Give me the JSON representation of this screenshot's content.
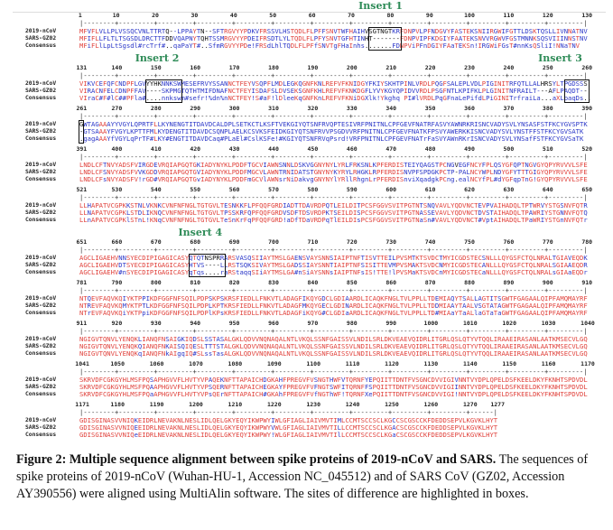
{
  "labels": {
    "ncov": "2019-nCoV",
    "sars": "SARS-GZ02",
    "consensus": "Consensus"
  },
  "alignment_length": 1277,
  "block_width": 130,
  "sequences": {
    "ncov": [
      "MFVFLVLLPLVSSQCVNLTTRTQ--LPPAYTN--SFTRGVYYPDKVFRSSVLHSTQDLFLPFFSNVTWFHAIHVSGTNGTKRFDNPVLPFNDGVYFASTEKSNIIRGWIFGTTLDSKTQSLLIVNNATNV",
      "VIKVCEFQFCNDPFLGVYYHKNNKSWMESEFRVYSSANNCTFEYVSQPFLMDLEGKQGNFKNLREFVFKNIDGYFKIYSKHTPINLVRDLPQGFSALEPLVDLPIGINITRFQTLLALHRSYLTPGDSSS",
      "GWTAGAAAYYVGYLQPRTFLLKYNENGTITDAVDCALDPLSETKCTLKSFTVEKGIYQTSNFRVQPTESIVRFPNITNLCPFGEVFNATRFASVYAWNRKRISNCVADYSVLYNSASFSTFKCYGVSPTK",
      "LNDLCFTNVYADSFVIRGDEVRQIAPGQTGKIADYNYKLPDDFTGCVIAWNSNNLDSKVGGNYNYLYRLFRKSNLKPFERDISTEIYQAGSTPCNGVEGFNCYFPLQSYGFQPTNGVGYQPYRVVVLSFE",
      "LLHAPATVCGPKKSTNLVKNKCVNFNFNGLTGTGVLTESNKKFLPFQQFGRDIADTTDAVRDPQTLEILDITPCSFGGVSVITPGTNTSNQVAVLYQDVNCTEVPVAIHADQLTPTWRVYSTGSNVFQTR",
      "AGCLIGAEHVNNSYECDIPIGAGICASYQTQTNSPRRARSVASQSIIAYTMSLGAENSVAYSNNSIAIPTNFTISVTTEILPVSMTKTSVDCTMYICGDSTECSNLLLQYGSFCTQLNRALTGIAVEQDK",
      "NTQEVFAQVKQIYKTPPIKDFGGFNFSQILPDPSKPSKRSFIEDLLFNKVTLADAGFIKQYGDCLGDIAARDLICAQKFNGLTVLPPLLTDEMIAQYTSALLAGTITSGWTFGAGAALQIPFAMQMAYRF",
      "NGIGVTQNVLYENQKLIANQFNSAIGKIQDSLSSTASALGKLQDVVNQNAQALNTLVKQLSSNFGAISSVLNDILSRLDKVEAEVQIDRLITGRLQSLQTYVTQQLIRAAEIRASANLAATKMSECVLGQ",
      "SKRVDFCGKGYHLMSFPQSAPHGVVFLHVTYVPAQEKNFTTAPAICHDGKAHFPREGVFVSNGTHWFVTQRNFYEPQIITTDNTFVSGNCDVVIGIVNNTVYDPLQPELDSFKEELDKYFKNHTSPDVDL",
      "GDISGINASVVNIQKEIDRLNEVAKNLNESLIDLQELGKYEQYIKWPWYIWLGFIAGLIAIVMVTIMLCCMTSCCSCLKGCCSCGSCCKFDEDDSEPVLKGVKLHYT"
    ],
    "sars": [
      "MFIFLLFLTLTSGSDLDRCTTFDDVQAPNYTQHTSSMRGVYYPDEIFRSDTLYLTQDLFLPFYSNVTGFHTINHT-------FDNPVIPFKDGIYFAATEKSNVVRGWVFGSTMNNKSQSVIIINNSTNV",
      "VIRACNFELCDNPFFAV----SKPMGTQTHTMIFDNAFNCTFEYISDAFSLDVSEKSGNFKHLREFVFKNKDGFLYVYKGYQPIDVVRDLPSGFNTLKPIFKLPLGINITNFRAILT---AFLPAQDT--",
      "-GTSAAAYFVGYLKPTTFMLKYDENGTITDAVDCSQNPLAELKCSVKSFEIDKGIYQTSNFRVVPSGDVVRFPNITNLCPFGEVFNATKFPSVYAWERKKISNCVADYSVLYNSTFFSTFKCYGVSATK",
      "LNDLCFSNVYADSFVVKGDDVRQIAPGQTGVIADYNYKLPDDFMGCVLAWNTRNIDATSTGNYNYKYRYLRHGKLRPFERDISNVPFSPDGKPCTP-PALNCYWPLNDYGFYTTTGIGYQPYRVVVLSFE",
      "LLNAPATVCGPKLSTDLIKNQCVNFNFNGLTGTGVLTPSSKRFQPFQQFGRDVSDFTDSVRDPKTSEILDISPCSFGGVSVITPGTNASSEVAVLYQDVNCTDVSTAIHADQLTPAWRIYSTGNNVFQTQ",
      "AGCLIGAEHVDTSYECDIPIGAGICASYHTVS----LLRSTSQKSIVAYTMSLGADSSIAYSNNTIAIPTNFSISITTEVMPVSMAKTSVDCNMYICGDSTECANLLLQYGSFCTQLNRALSGIAAEQDR",
      "NTREVFAQVKQMYKTPTLKDFGGFNFSQILPDPLKPTKRSFIEDLLFNKVTLADAGFMKQYGECLGDINARDLICAQKFNGLTVLPPLLTDDMIAAYTAALVSGTATAGWTFGAGAALQIPFAMQMAYRF",
      "NGIGVTQNVLYENQKQIANQFNKAISQIQESLTTTSTALGKLQDVVNQNAQALNTLVKQLSSNFGAISSVLNDILSRLDKVEAEVQIDRLITGRLQSLQTYVTQQLIRAAEIRASANLAATKMSECVLGQ",
      "SKRVDFCGKGYHLMSFPQAAPHGVVFLHVTYVPSQERNFTTAPAICHEGKAYFPREGVFVFNGTSWFITQRNFFSPQIITTDNTFVSGNCDVVIGIINNTVYDPLQPELDSFKEELDKYFKNHTSPDVDL",
      "GDISGINASVVNIQEEIDRLNEVAKNLNESLIDLQELGKYEQYIKWPWYVWLGFIAGLIAIVMVTILLCCMTSCCSCLKGACSCGSCCKFDEDDSEPVLKGVKLHYT"
    ],
    "consensus": [
      "MFiFLlLpLtSgsdl#rcTrf#..qaPaYT#..SfmRGVYYPDe!FRSdLhlTQDLFLPFfSNVTgFHaInhs.......FDNPViPFnDGIYFAaTEKSn!IRGWiFGsT#nnKsQSliI!NNaTNV",
      "VIraC#F#lC##PFla#....nnkswm#sefr!%dn%nNCTFEY!S#aF!lDleeKqGNFKnLREFVFKNiDGXlk!Ykghq PI#lVRDLPqGFnaLePifdLPiGINITrfraiLa...aXLpaqDs..",
      ".gagAAAYfVGYLqPrTF#LKY#ENGTITDAVDCaq#PLaEl#CslKSFe!#KGIYQTSNFRVqPsrd!VRFPNITNLCPFGEVFNATrFaSVYAWnRKrISNCVADYSVLYNSafFSTFKCYGVSaTK",
      "LNDLCFsNVYADSFV!rGD#VRQIAPGQTGvIADYNYKLPDDFmGCVlAWNsrNiDakvgGNYNYlYRllRhgnLrPFERDISnviXqadgkPCng.ealNCYfPL#dYGFqpTnG!GYQPYRVVVLSFE",
      "LLnAPATVCGPKlSTnL!KNqCVNFNFNGLTGTGVLTeSnKrFqPFQQFGRD!aDfTDaVRDPqTlEILDIsPCSFGGVSVITPGTNaSn#VAVLYQDVNCT#VptAIHADQLTPaWRIYSTGnNVFQTr",
      "AGCLIGAEHV#nSYECDIPIGAGICASYqTqs....raRStaqqSIiAYTMSLGA#nSiAYSNNsIAIPTNFsIS!TTE!lPVSMaKTSVDCnMYICGDSTECaNLLLQYGSFCTQLNRALsGIAaEQDr",
      "NTrEVFAQVKQiYKTPpiKDFGGFNFSQILPDPlKPsKRSFIEDLLFNKVTLADAGFiKQYG#CLGDIaARDLICAQKFNGLTVLPPLLTD#MIAaYTaALlaGTaTaGWTFGAGAALQIPFAMQMAYRF",
      "NGIGVTQNVLYENQKqIANQFNkAIgqIQ#SLssTasALGKLQDVVNQNAQALNTLVKQLSSNFGAISSVLNDILSRLDKVEAEVQIDRLITGRLQSLQTYVTQQLIRAAEIRASANLAATKMSECVLGQ",
      "SKRVDFCGKGYHLMSFPQaAPHGVVFLHVTYVPsQErNFTTAPAICH#GKAhFPREGVFVfNGThWF!TQRNFXePQIITTDNTFVSGNCDVVIGI!NNTVYDPLQPELDSFKEELDKYFKNHTSPDVDL",
      "GDISGINASVVNIQeEIDRLNEVAKNLNESLIDLQELGKYEQYIKWPWY!WLGFIAGLIAIVMVTIlLCCMTSCCSCLKGaCSCGSCCKFDEDDSEPVLKGVKLHYT"
    ]
  },
  "inserts": [
    {
      "label": "Insert 1",
      "start": 75,
      "end": 82
    },
    {
      "label": "Insert 2",
      "start": 148,
      "end": 156
    },
    {
      "label": "Insert 3",
      "start": 255,
      "end": 261
    },
    {
      "label": "Insert 4",
      "start": 679,
      "end": 687
    }
  ],
  "colors": {
    "high": "#e0403a",
    "low": "#2a36c8",
    "insert_label": "#2e8b57"
  },
  "caption": {
    "title": "Figure 2: Multiple sequence alignment between spike proteins of 2019-nCoV and SARS.",
    "text": " The sequences of spike proteins of 2019-nCoV (Wuhan-HU-1, Accession NC_045512) and of SARS CoV (GZ02, Accession AY390556) were aligned using MultiAlin software. The sites of difference are highlighted in  boxes."
  }
}
